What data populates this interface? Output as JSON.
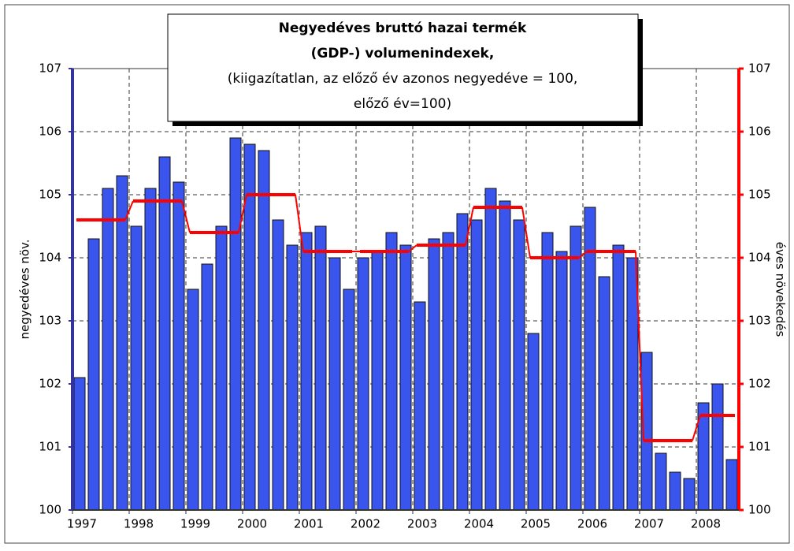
{
  "chart_data": {
    "type": "bar_line",
    "title": "Negyedéves bruttó hazai termék",
    "title_line2": "(GDP-) volumenindexek,",
    "subtitle": "(kiigazítatlan, az előző év azonos negyedéve = 100,",
    "subtitle_line2": "előző év=100)",
    "ylabel": "negyedéves növ.",
    "y2label": "éves növekedés",
    "years": [
      "1997",
      "1998",
      "1999",
      "2000",
      "2001",
      "2002",
      "2003",
      "2004",
      "2005",
      "2006",
      "2007",
      "2008"
    ],
    "ylim": [
      100,
      107
    ],
    "yticks": [
      100,
      101,
      102,
      103,
      104,
      105,
      106,
      107
    ],
    "y2lim": [
      100,
      107
    ],
    "y2ticks": [
      100,
      101,
      102,
      103,
      104,
      105,
      106,
      107
    ],
    "grid": true,
    "series": [
      {
        "type": "bar",
        "color": "#3a55ee",
        "values": [
          102.1,
          104.3,
          105.1,
          105.3,
          104.5,
          105.1,
          105.6,
          105.2,
          103.5,
          103.9,
          104.5,
          105.9,
          105.8,
          105.7,
          104.6,
          104.2,
          104.4,
          104.5,
          104.0,
          103.5,
          104.0,
          104.1,
          104.4,
          104.2,
          103.3,
          104.3,
          104.4,
          104.7,
          104.6,
          105.1,
          104.9,
          104.6,
          102.8,
          104.4,
          104.1,
          104.5,
          104.8,
          103.7,
          104.2,
          104.0,
          102.5,
          100.9,
          100.6,
          100.5,
          101.7,
          102.0,
          100.8
        ]
      },
      {
        "type": "step",
        "axis": "y2",
        "color": "#ff0000",
        "values": [
          104.6,
          104.9,
          104.4,
          105.0,
          104.1,
          104.1,
          104.2,
          104.8,
          104.0,
          104.1,
          101.1,
          101.5
        ]
      }
    ]
  }
}
